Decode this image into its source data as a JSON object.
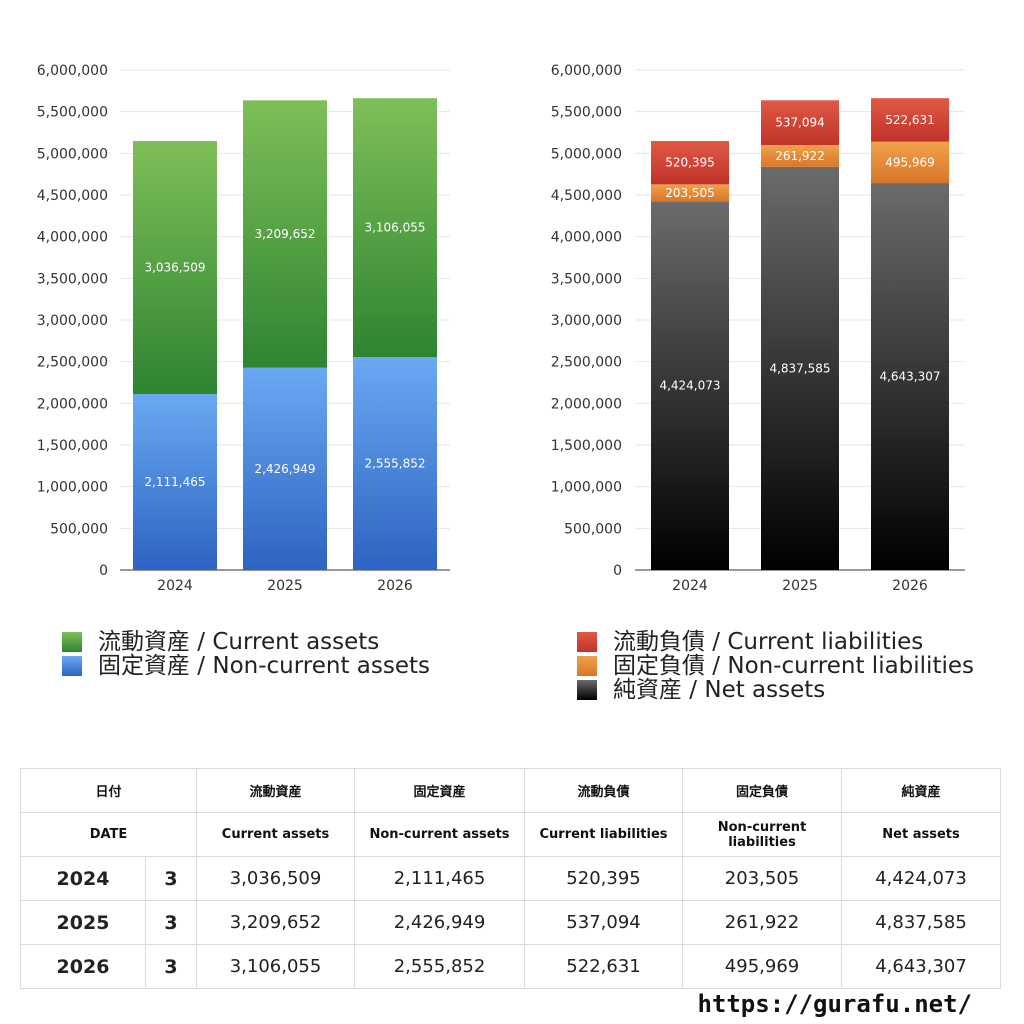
{
  "chart_data": [
    {
      "type": "bar",
      "stacked": true,
      "categories": [
        "2024",
        "2025",
        "2026"
      ],
      "ylim": [
        0,
        6000000
      ],
      "yticks": [
        "0",
        "500,000",
        "1,000,000",
        "1,500,000",
        "2,000,000",
        "2,500,000",
        "3,000,000",
        "3,500,000",
        "4,000,000",
        "4,500,000",
        "5,000,000",
        "5,500,000",
        "6,000,000"
      ],
      "series": [
        {
          "name": "固定資産 / Non-current assets",
          "values": [
            2111465,
            2426949,
            2555852
          ],
          "labels": [
            "2,111,465",
            "2,426,949",
            "2,555,852"
          ],
          "color_top": "#6aa9f2",
          "color_bottom": "#2d63c2"
        },
        {
          "name": "流動資産 / Current assets",
          "values": [
            3036509,
            3209652,
            3106055
          ],
          "labels": [
            "3,036,509",
            "3,209,652",
            "3,106,055"
          ],
          "color_top": "#7fbf58",
          "color_bottom": "#2e8432"
        }
      ]
    },
    {
      "type": "bar",
      "stacked": true,
      "categories": [
        "2024",
        "2025",
        "2026"
      ],
      "ylim": [
        0,
        6000000
      ],
      "yticks": [
        "0",
        "500,000",
        "1,000,000",
        "1,500,000",
        "2,000,000",
        "2,500,000",
        "3,000,000",
        "3,500,000",
        "4,000,000",
        "4,500,000",
        "5,000,000",
        "5,500,000",
        "6,000,000"
      ],
      "series": [
        {
          "name": "純資産 / Net assets",
          "values": [
            4424073,
            4837585,
            4643307
          ],
          "labels": [
            "4,424,073",
            "4,837,585",
            "4,643,307"
          ],
          "color_top": "#6b6b6b",
          "color_bottom": "#000000"
        },
        {
          "name": "固定負債 / Non-current liabilities",
          "values": [
            203505,
            261922,
            495969
          ],
          "labels": [
            "203,505",
            "261,922",
            "495,969"
          ],
          "color_top": "#f0a24a",
          "color_bottom": "#d8762a"
        },
        {
          "name": "流動負債 / Current liabilities",
          "values": [
            520395,
            537094,
            522631
          ],
          "labels": [
            "520,395",
            "537,094",
            "522,631"
          ],
          "color_top": "#e05a45",
          "color_bottom": "#c0322a"
        }
      ]
    }
  ],
  "legend_left": [
    {
      "label": "流動資産 / Current assets",
      "color": "#4e9e3e"
    },
    {
      "label": "固定資産 / Non-current assets",
      "color": "#4a8be0"
    }
  ],
  "legend_right": [
    {
      "label": "流動負債 / Current liabilities",
      "color": "#d23f33"
    },
    {
      "label": "固定負債 / Non-current liabilities",
      "color": "#e2873a"
    },
    {
      "label": "純資産 / Net assets",
      "color": "#222222"
    }
  ],
  "table": {
    "header_jp": [
      "日付",
      "流動資産",
      "固定資産",
      "流動負債",
      "固定負債",
      "純資産"
    ],
    "header_en": [
      "DATE",
      "Current assets",
      "Non-current assets",
      "Current liabilities",
      "Non-current liabilities",
      "Net assets"
    ],
    "rows": [
      {
        "year": "2024",
        "count": "3",
        "values": [
          "3,036,509",
          "2,111,465",
          "520,395",
          "203,505",
          "4,424,073"
        ]
      },
      {
        "year": "2025",
        "count": "3",
        "values": [
          "3,209,652",
          "2,426,949",
          "537,094",
          "261,922",
          "4,837,585"
        ]
      },
      {
        "year": "2026",
        "count": "3",
        "values": [
          "3,106,055",
          "2,555,852",
          "522,631",
          "495,969",
          "4,643,307"
        ]
      }
    ]
  },
  "site": "https://gurafu.net/"
}
